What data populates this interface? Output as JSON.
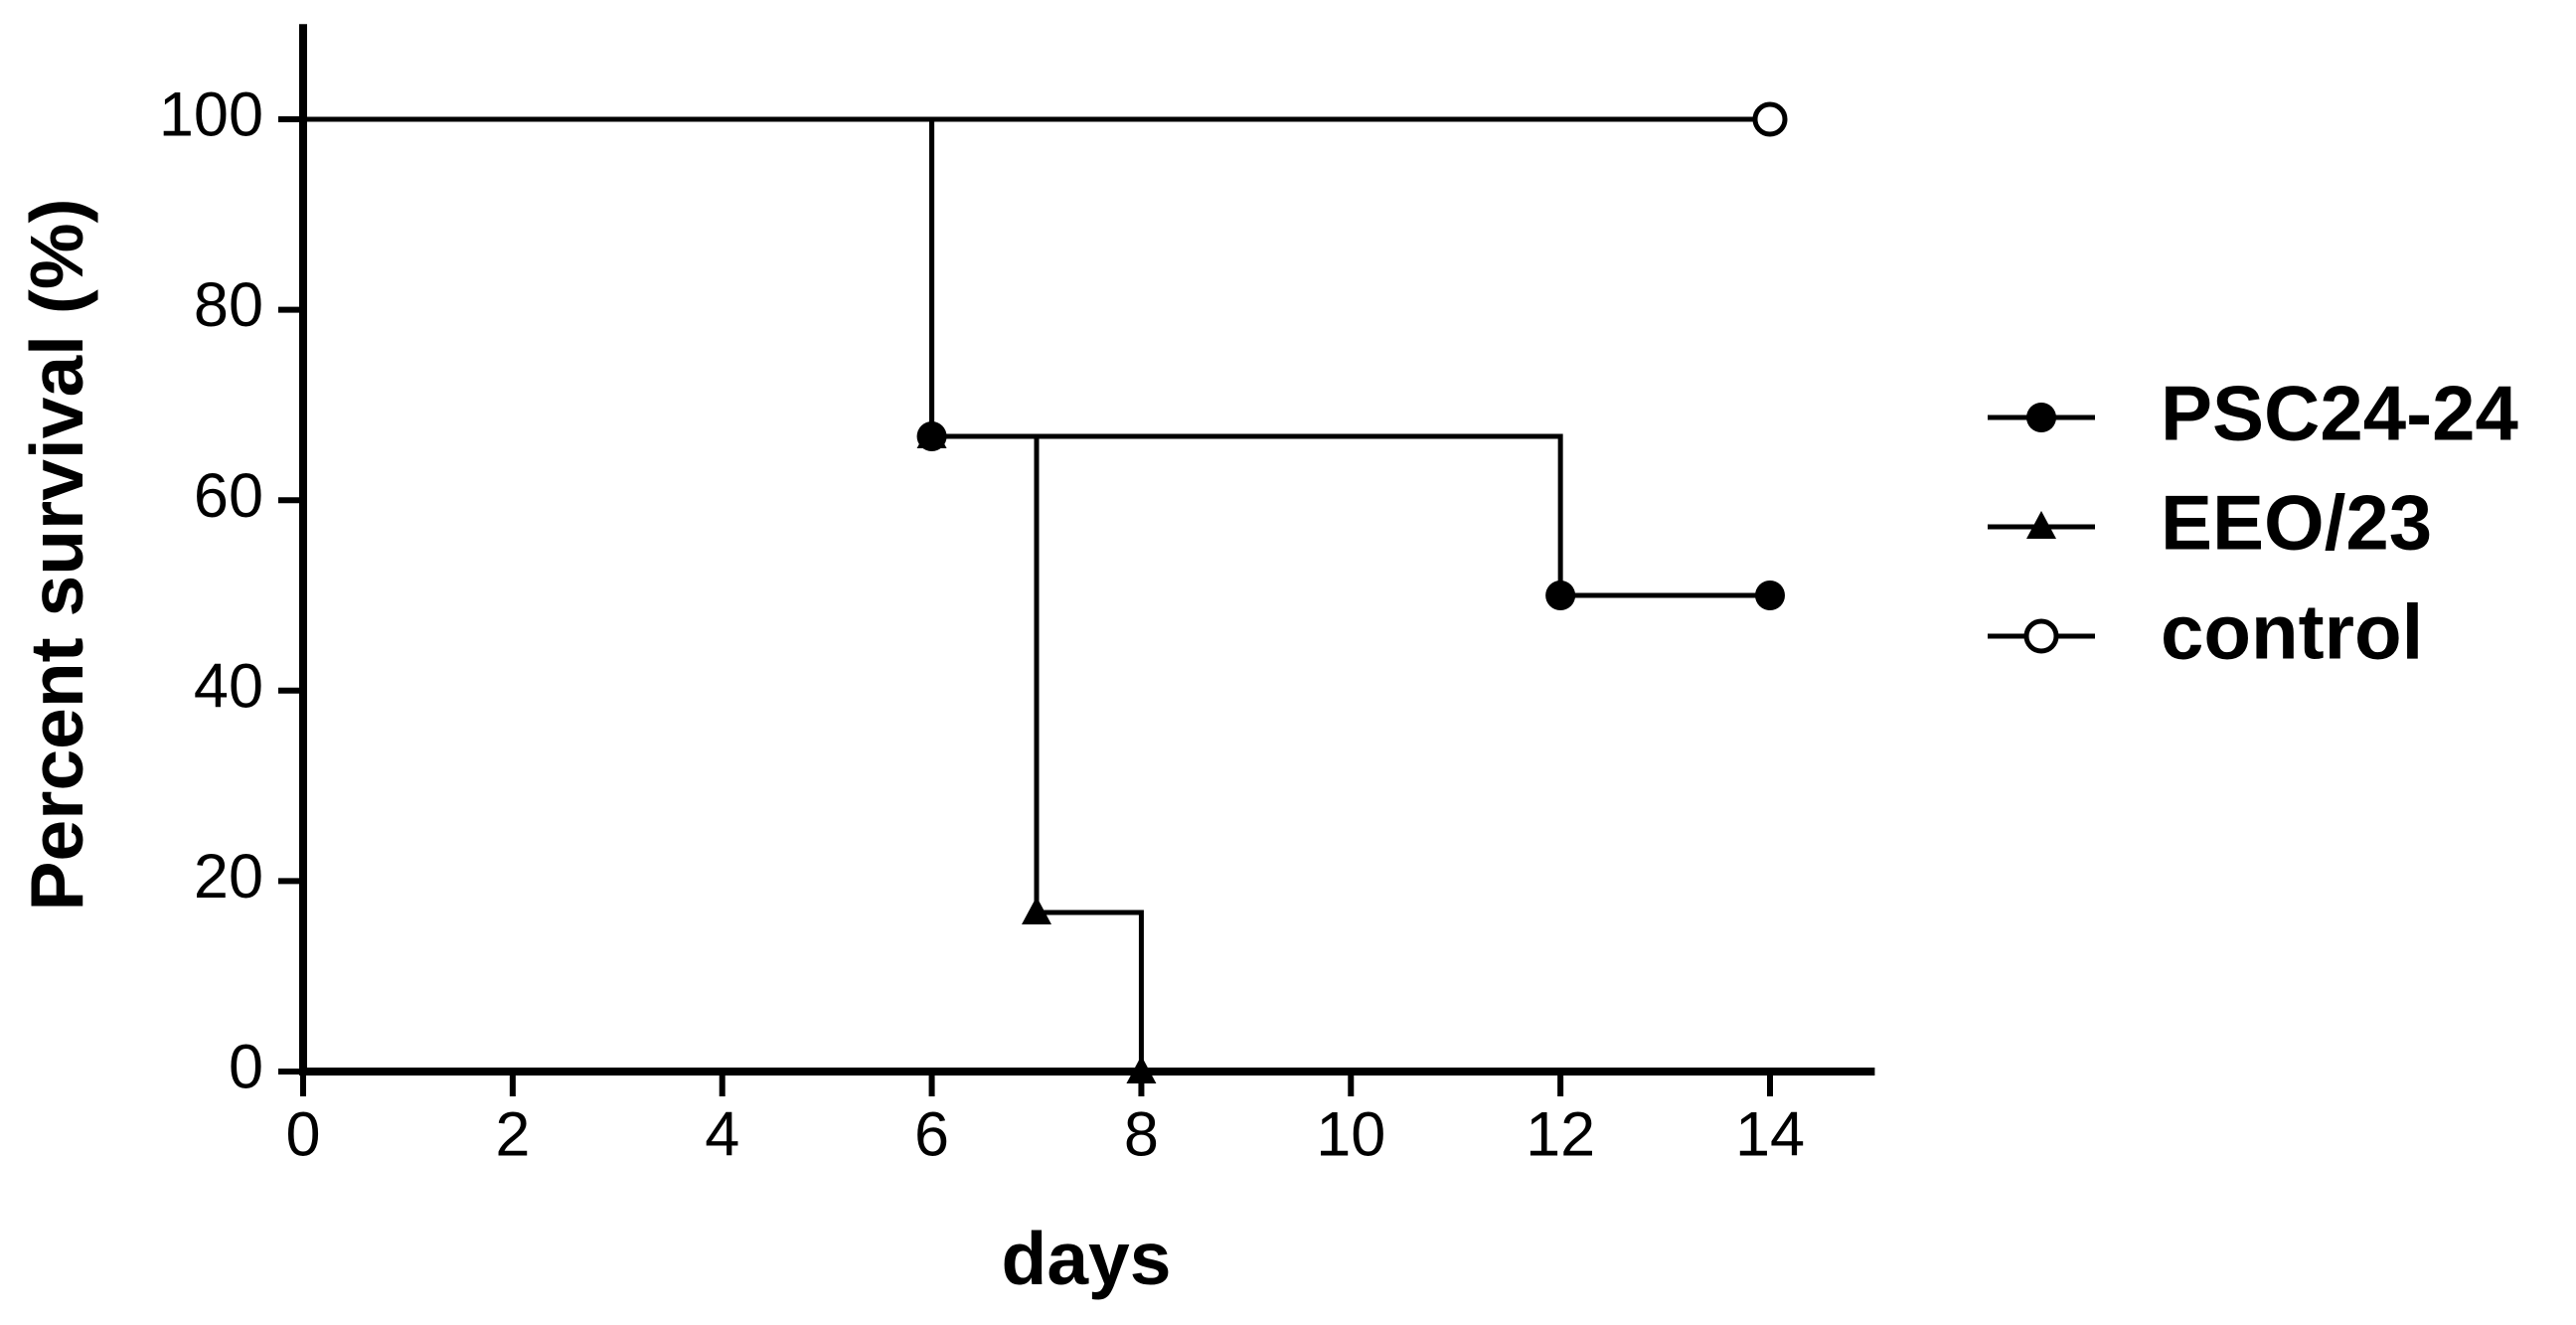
{
  "chart_data": {
    "type": "step",
    "xlabel": "days",
    "ylabel": "Percent survival (%)",
    "xlim": [
      0,
      15
    ],
    "xticks": [
      0,
      2,
      4,
      6,
      8,
      10,
      12,
      14
    ],
    "ylim": [
      0,
      110
    ],
    "yticks": [
      0,
      20,
      40,
      60,
      80,
      100
    ],
    "legend": "right",
    "series": [
      {
        "name": "PSC24-24",
        "color": "#000000",
        "marker": "circle",
        "x": [
          0,
          6,
          12,
          14
        ],
        "values": [
          100,
          66.7,
          50,
          50
        ]
      },
      {
        "name": "EEO/23",
        "color": "#000000",
        "marker": "triangle",
        "x": [
          0,
          6,
          7,
          8
        ],
        "values": [
          100,
          66.7,
          16.7,
          0
        ]
      },
      {
        "name": "control",
        "color": "#000000",
        "marker": "open-circle",
        "x": [
          0,
          14
        ],
        "values": [
          100,
          100
        ]
      }
    ]
  }
}
